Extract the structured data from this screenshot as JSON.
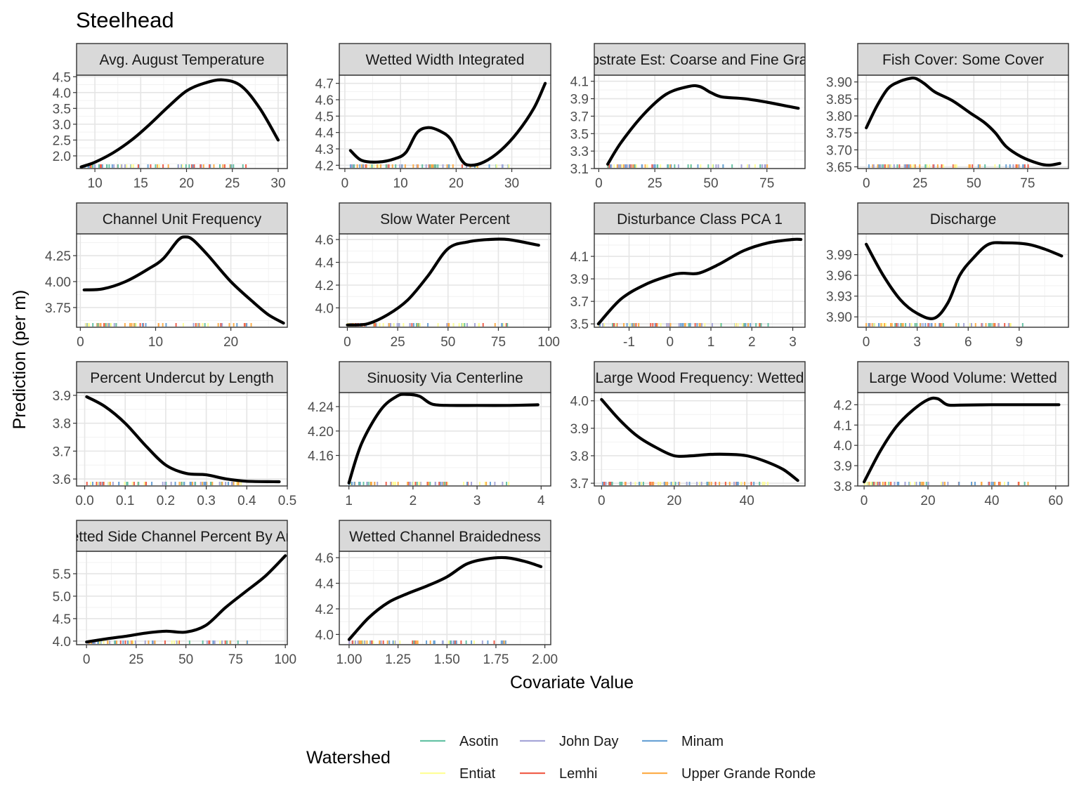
{
  "title": "Steelhead",
  "xlabel": "Covariate Value",
  "ylabel": "Prediction (per m)",
  "legend": {
    "title": "Watershed",
    "entries": [
      {
        "name": "Asotin",
        "color": "#66C2A5"
      },
      {
        "name": "Entiat",
        "color": "#FFFF99"
      },
      {
        "name": "John Day",
        "color": "#A6A6D8"
      },
      {
        "name": "Lemhi",
        "color": "#F0604D"
      },
      {
        "name": "Minam",
        "color": "#6BA3D6"
      },
      {
        "name": "Upper Grande Ronde",
        "color": "#FDAE4B"
      }
    ]
  },
  "chart_data": [
    {
      "type": "line",
      "title": "Avg. August Temperature",
      "xlim": [
        8,
        31
      ],
      "ylim": [
        1.6,
        4.55
      ],
      "xticks": [
        "10",
        "15",
        "20",
        "25",
        "30"
      ],
      "xtick_values": [
        10,
        15,
        20,
        25,
        30
      ],
      "yticks": [
        "2.0",
        "2.5",
        "3.0",
        "3.5",
        "4.0",
        "4.5"
      ],
      "ytick_values": [
        2.0,
        2.5,
        3.0,
        3.5,
        4.0,
        4.5
      ],
      "x": [
        8.5,
        10,
        12,
        14,
        16,
        18,
        20,
        22,
        24,
        26,
        28,
        30
      ],
      "y": [
        1.65,
        1.8,
        2.1,
        2.5,
        3.0,
        3.55,
        4.05,
        4.3,
        4.4,
        4.2,
        3.5,
        2.5
      ]
    },
    {
      "type": "line",
      "title": "Wetted Width Integrated",
      "xlim": [
        -1,
        37
      ],
      "ylim": [
        4.18,
        4.75
      ],
      "xticks": [
        "0",
        "10",
        "20",
        "30"
      ],
      "xtick_values": [
        0,
        10,
        20,
        30
      ],
      "yticks": [
        "4.2",
        "4.3",
        "4.4",
        "4.5",
        "4.6",
        "4.7"
      ],
      "ytick_values": [
        4.2,
        4.3,
        4.4,
        4.5,
        4.6,
        4.7
      ],
      "x": [
        1,
        3,
        6,
        9,
        11,
        13,
        15,
        17,
        19,
        21,
        22.5,
        25,
        28,
        31,
        34,
        36
      ],
      "y": [
        4.29,
        4.23,
        4.22,
        4.24,
        4.28,
        4.4,
        4.43,
        4.41,
        4.36,
        4.23,
        4.2,
        4.22,
        4.29,
        4.4,
        4.55,
        4.7
      ]
    },
    {
      "type": "line",
      "title": "Substrate Est: Coarse and Fine Gravel",
      "xlim": [
        -2,
        92
      ],
      "ylim": [
        3.1,
        4.17
      ],
      "xticks": [
        "0",
        "25",
        "50",
        "75"
      ],
      "xtick_values": [
        0,
        25,
        50,
        75
      ],
      "yticks": [
        "3.1",
        "3.3",
        "3.5",
        "3.7",
        "3.9",
        "4.1"
      ],
      "ytick_values": [
        3.1,
        3.3,
        3.5,
        3.7,
        3.9,
        4.1
      ],
      "x": [
        4,
        10,
        20,
        30,
        40,
        45,
        50,
        55,
        65,
        75,
        85,
        89
      ],
      "y": [
        3.15,
        3.4,
        3.72,
        3.95,
        4.04,
        4.04,
        3.97,
        3.92,
        3.9,
        3.86,
        3.81,
        3.79
      ]
    },
    {
      "type": "line",
      "title": "Fish Cover: Some Cover",
      "xlim": [
        -4,
        94
      ],
      "ylim": [
        3.645,
        3.92
      ],
      "xticks": [
        "0",
        "25",
        "50",
        "75"
      ],
      "xtick_values": [
        0,
        25,
        50,
        75
      ],
      "yticks": [
        "3.65",
        "3.70",
        "3.75",
        "3.80",
        "3.85",
        "3.90"
      ],
      "ytick_values": [
        3.65,
        3.7,
        3.75,
        3.8,
        3.85,
        3.9
      ],
      "x": [
        0,
        5,
        10,
        15,
        20,
        23,
        27,
        32,
        40,
        48,
        55,
        60,
        65,
        72,
        80,
        85,
        90
      ],
      "y": [
        3.765,
        3.83,
        3.88,
        3.9,
        3.91,
        3.91,
        3.895,
        3.87,
        3.845,
        3.81,
        3.78,
        3.75,
        3.71,
        3.68,
        3.66,
        3.655,
        3.66
      ]
    },
    {
      "type": "line",
      "title": "Channel Unit Frequency",
      "xlim": [
        -0.5,
        27.5
      ],
      "ylim": [
        3.56,
        4.46
      ],
      "xticks": [
        "0",
        "10",
        "20"
      ],
      "xtick_values": [
        0,
        10,
        20
      ],
      "yticks": [
        "3.75",
        "4.00",
        "4.25"
      ],
      "ytick_values": [
        3.75,
        4.0,
        4.25
      ],
      "x": [
        0.5,
        3,
        6,
        9,
        11,
        13,
        14,
        15,
        17,
        20,
        23,
        25,
        27
      ],
      "y": [
        3.92,
        3.93,
        4.0,
        4.12,
        4.22,
        4.4,
        4.43,
        4.4,
        4.25,
        4.0,
        3.8,
        3.68,
        3.6
      ]
    },
    {
      "type": "line",
      "title": "Slow Water Percent",
      "xlim": [
        -4,
        101
      ],
      "ylim": [
        3.83,
        4.65
      ],
      "xticks": [
        "0",
        "25",
        "50",
        "75",
        "100"
      ],
      "xtick_values": [
        0,
        25,
        50,
        75,
        100
      ],
      "yticks": [
        "4.0",
        "4.2",
        "4.4",
        "4.6"
      ],
      "ytick_values": [
        4.0,
        4.2,
        4.4,
        4.6
      ],
      "x": [
        0,
        10,
        20,
        30,
        40,
        50,
        60,
        70,
        80,
        95
      ],
      "y": [
        3.85,
        3.86,
        3.94,
        4.07,
        4.28,
        4.52,
        4.58,
        4.6,
        4.6,
        4.55
      ]
    },
    {
      "type": "line",
      "title": "Disturbance Class PCA 1",
      "xlim": [
        -1.85,
        3.3
      ],
      "ylim": [
        3.47,
        4.3
      ],
      "xticks": [
        "-1",
        "0",
        "1",
        "2",
        "3"
      ],
      "xtick_values": [
        -1,
        0,
        1,
        2,
        3
      ],
      "yticks": [
        "3.5",
        "3.7",
        "3.9",
        "4.1"
      ],
      "ytick_values": [
        3.5,
        3.7,
        3.9,
        4.1
      ],
      "x": [
        -1.75,
        -1.2,
        -0.6,
        0,
        0.3,
        0.7,
        1.2,
        1.8,
        2.4,
        3.0,
        3.2
      ],
      "y": [
        3.5,
        3.72,
        3.85,
        3.93,
        3.95,
        3.95,
        4.03,
        4.15,
        4.22,
        4.25,
        4.25
      ]
    },
    {
      "type": "line",
      "title": "Discharge",
      "xlim": [
        -0.5,
        11.9
      ],
      "ylim": [
        3.885,
        4.02
      ],
      "xticks": [
        "0",
        "3",
        "6",
        "9"
      ],
      "xtick_values": [
        0,
        3,
        6,
        9
      ],
      "yticks": [
        "3.90",
        "3.93",
        "3.96",
        "3.99"
      ],
      "ytick_values": [
        3.9,
        3.93,
        3.96,
        3.99
      ],
      "x": [
        0,
        1,
        2,
        3,
        4,
        4.8,
        5.5,
        6.3,
        7.2,
        8.2,
        9.5,
        10.5,
        11.5
      ],
      "y": [
        4.005,
        3.96,
        3.925,
        3.905,
        3.898,
        3.92,
        3.96,
        3.985,
        4.005,
        4.007,
        4.005,
        3.998,
        3.988
      ]
    },
    {
      "type": "line",
      "title": "Percent Undercut by Length",
      "xlim": [
        -0.02,
        0.5
      ],
      "ylim": [
        3.575,
        3.91
      ],
      "xticks": [
        "0.0",
        "0.1",
        "0.2",
        "0.3",
        "0.4",
        "0.5"
      ],
      "xtick_values": [
        0.0,
        0.1,
        0.2,
        0.3,
        0.4,
        0.5
      ],
      "yticks": [
        "3.6",
        "3.7",
        "3.8",
        "3.9"
      ],
      "ytick_values": [
        3.6,
        3.7,
        3.8,
        3.9
      ],
      "x": [
        0.005,
        0.05,
        0.1,
        0.15,
        0.2,
        0.25,
        0.3,
        0.35,
        0.4,
        0.48
      ],
      "y": [
        3.895,
        3.86,
        3.8,
        3.72,
        3.65,
        3.62,
        3.615,
        3.6,
        3.592,
        3.59
      ]
    },
    {
      "type": "line",
      "title": "Sinuosity Via Centerline",
      "xlim": [
        0.85,
        4.15
      ],
      "ylim": [
        4.11,
        4.263
      ],
      "xticks": [
        "1",
        "2",
        "3",
        "4"
      ],
      "xtick_values": [
        1,
        2,
        3,
        4
      ],
      "yticks": [
        "4.16",
        "4.20",
        "4.24"
      ],
      "ytick_values": [
        4.16,
        4.2,
        4.24
      ],
      "x": [
        1.0,
        1.2,
        1.5,
        1.75,
        1.9,
        2.1,
        2.3,
        2.6,
        3.0,
        3.5,
        3.95
      ],
      "y": [
        4.115,
        4.18,
        4.235,
        4.257,
        4.26,
        4.257,
        4.244,
        4.242,
        4.242,
        4.242,
        4.243
      ]
    },
    {
      "type": "line",
      "title": "Large Wood Frequency: Wetted",
      "xlim": [
        -2,
        56
      ],
      "ylim": [
        3.69,
        4.03
      ],
      "xticks": [
        "0",
        "20",
        "40"
      ],
      "xtick_values": [
        0,
        20,
        40
      ],
      "yticks": [
        "3.7",
        "3.8",
        "3.9",
        "4.0"
      ],
      "ytick_values": [
        3.7,
        3.8,
        3.9,
        4.0
      ],
      "x": [
        0,
        5,
        10,
        15,
        20,
        25,
        30,
        35,
        40,
        45,
        50,
        54
      ],
      "y": [
        4.005,
        3.93,
        3.87,
        3.83,
        3.8,
        3.8,
        3.805,
        3.805,
        3.8,
        3.78,
        3.75,
        3.71
      ]
    },
    {
      "type": "line",
      "title": "Large Wood Volume: Wetted",
      "xlim": [
        -2,
        64
      ],
      "ylim": [
        3.8,
        4.26
      ],
      "xticks": [
        "0",
        "20",
        "40",
        "60"
      ],
      "xtick_values": [
        0,
        20,
        40,
        60
      ],
      "yticks": [
        "3.8",
        "3.9",
        "4.0",
        "4.1",
        "4.2"
      ],
      "ytick_values": [
        3.8,
        3.9,
        4.0,
        4.1,
        4.2
      ],
      "x": [
        0,
        5,
        10,
        15,
        20,
        23,
        26,
        30,
        40,
        50,
        61
      ],
      "y": [
        3.82,
        3.97,
        4.09,
        4.17,
        4.225,
        4.23,
        4.2,
        4.198,
        4.2,
        4.2,
        4.2
      ]
    },
    {
      "type": "line",
      "title": "Wetted Side Channel Percent By Area",
      "xlim": [
        -5,
        101
      ],
      "ylim": [
        3.92,
        6.0
      ],
      "xticks": [
        "0",
        "25",
        "50",
        "75",
        "100"
      ],
      "xtick_values": [
        0,
        25,
        50,
        75,
        100
      ],
      "yticks": [
        "4.0",
        "4.5",
        "5.0",
        "5.5"
      ],
      "ytick_values": [
        4.0,
        4.5,
        5.0,
        5.5
      ],
      "x": [
        0,
        10,
        20,
        30,
        40,
        50,
        60,
        70,
        80,
        90,
        100
      ],
      "y": [
        3.98,
        4.05,
        4.11,
        4.18,
        4.22,
        4.2,
        4.35,
        4.75,
        5.1,
        5.45,
        5.9
      ]
    },
    {
      "type": "line",
      "title": "Wetted Channel Braidedness",
      "xlim": [
        0.95,
        2.03
      ],
      "ylim": [
        3.92,
        4.65
      ],
      "xticks": [
        "1.00",
        "1.25",
        "1.50",
        "1.75",
        "2.00"
      ],
      "xtick_values": [
        1.0,
        1.25,
        1.5,
        1.75,
        2.0
      ],
      "yticks": [
        "4.0",
        "4.2",
        "4.4",
        "4.6"
      ],
      "ytick_values": [
        4.0,
        4.2,
        4.4,
        4.6
      ],
      "x": [
        1.0,
        1.1,
        1.2,
        1.3,
        1.4,
        1.5,
        1.6,
        1.7,
        1.8,
        1.9,
        1.98
      ],
      "y": [
        3.96,
        4.13,
        4.25,
        4.32,
        4.38,
        4.45,
        4.55,
        4.59,
        4.6,
        4.57,
        4.53
      ]
    }
  ]
}
